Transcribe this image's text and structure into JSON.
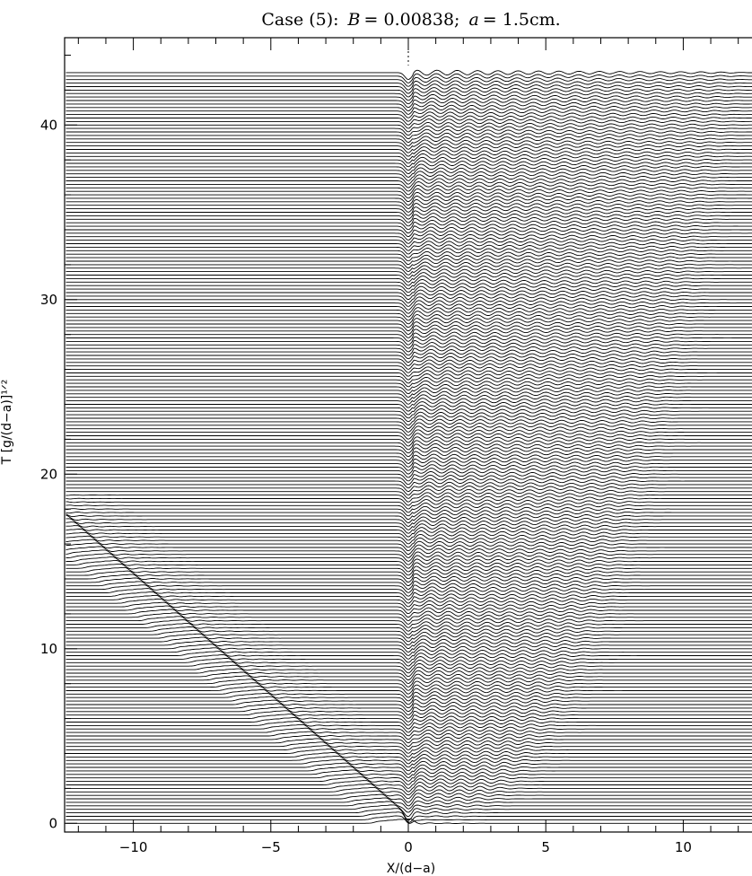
{
  "chart_data": {
    "type": "line",
    "title": {
      "prefix": "Case (5):",
      "B_symbol": "B",
      "B_value": " = 0.00838;",
      "a_symbol": "a",
      "a_value": " = 1.5cm."
    },
    "xlabel": "X/(d−a)",
    "ylabel": "T [g/(d−a)]¹ᐟ²",
    "xlim": [
      -12.5,
      12.5
    ],
    "ylim": [
      -0.5,
      45
    ],
    "x_ticks": [
      -10,
      -5,
      0,
      5,
      10
    ],
    "x_tick_labels": [
      "−10",
      "−5",
      "0",
      "5",
      "10"
    ],
    "y_ticks": [
      0,
      10,
      20,
      30,
      40
    ],
    "y_tick_labels": [
      "0",
      "10",
      "20",
      "30",
      "40"
    ],
    "series_description": {
      "stacked_time_traces": true,
      "t_start": 0,
      "t_end": 43,
      "trace_count": 216,
      "line_color": "#000000",
      "vertical_reference_line_x": 0
    },
    "grid": false,
    "legend": "none"
  }
}
